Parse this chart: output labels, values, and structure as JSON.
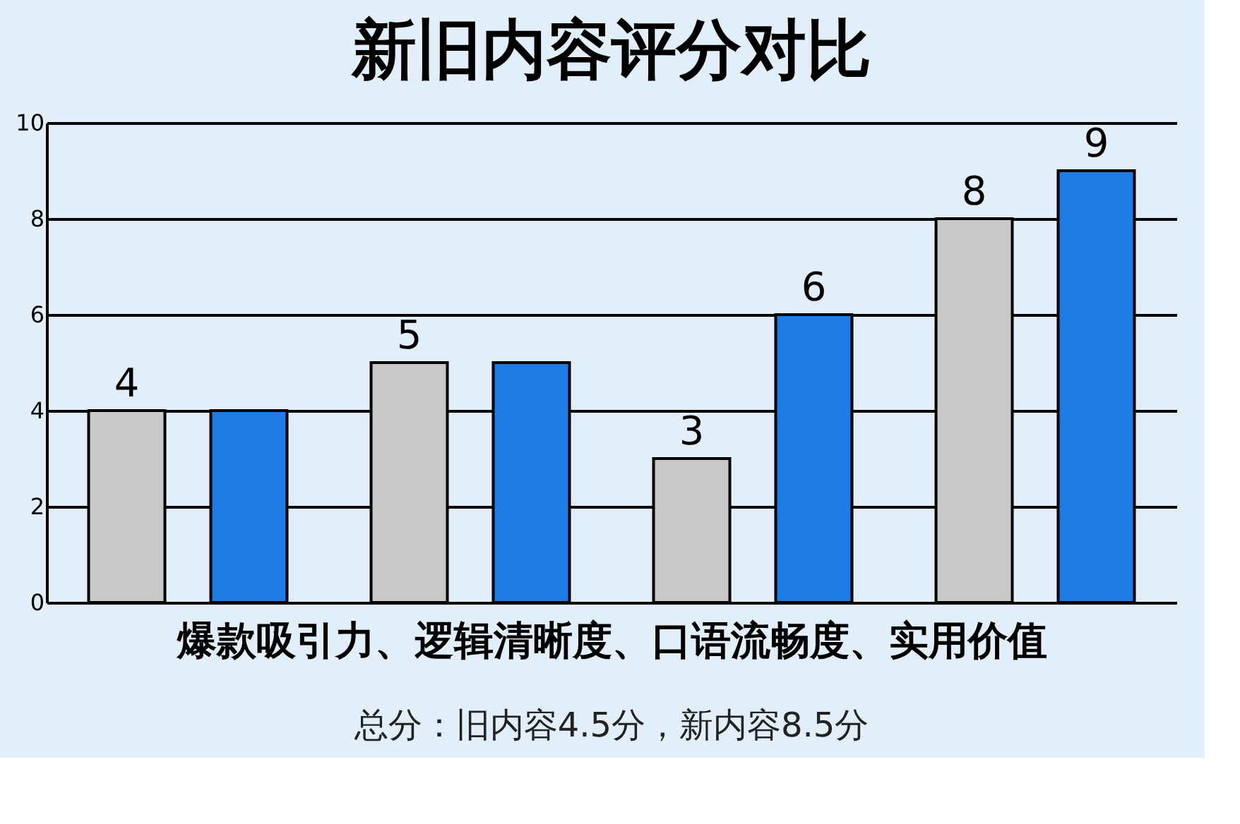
{
  "chart_data": {
    "type": "bar",
    "title": "新旧内容评分对比",
    "xlabel": "爆款吸引力、逻辑清晰度、口语流畅度、实用价值",
    "annotations": [
      "总分：旧内容4.5分，新内容8.5分"
    ],
    "categories": [
      null,
      null,
      null,
      null
    ],
    "series": [
      {
        "color": "#c8c8c8",
        "values": [
          4,
          5,
          3,
          8
        ],
        "value_labels": [
          "4",
          "5",
          "3",
          "8"
        ]
      },
      {
        "color": "#1e7be6",
        "values": [
          4,
          5,
          6,
          9
        ],
        "value_labels": [
          null,
          null,
          "6",
          "9"
        ]
      }
    ],
    "ylim": [
      0,
      10
    ],
    "yticks": [
      0,
      2,
      4,
      6,
      8,
      10
    ],
    "grid": "y",
    "tick_labels": "y"
  }
}
